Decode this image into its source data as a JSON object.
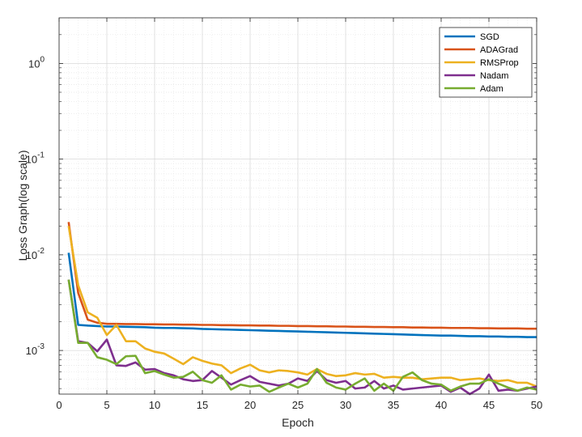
{
  "chart_data": {
    "type": "line",
    "title": "",
    "xlabel": "Epoch",
    "ylabel": "Loss Graph(log scale)",
    "xlim": [
      0,
      50
    ],
    "ylim": [
      0.00035,
      3
    ],
    "yscale": "log",
    "grid": true,
    "minor_grid": true,
    "legend_position": "top-right",
    "xticks": [
      "0",
      "5",
      "10",
      "15",
      "20",
      "25",
      "30",
      "35",
      "40",
      "45",
      "50"
    ],
    "yticks": [
      {
        "value": 1,
        "base": "10",
        "exp": "0"
      },
      {
        "value": 0.1,
        "base": "10",
        "exp": "-1"
      },
      {
        "value": 0.01,
        "base": "10",
        "exp": "-2"
      },
      {
        "value": 0.001,
        "base": "10",
        "exp": "-3"
      }
    ],
    "x": [
      1,
      2,
      3,
      4,
      5,
      6,
      7,
      8,
      9,
      10,
      11,
      12,
      13,
      14,
      15,
      16,
      17,
      18,
      19,
      20,
      21,
      22,
      23,
      24,
      25,
      26,
      27,
      28,
      29,
      30,
      31,
      32,
      33,
      34,
      35,
      36,
      37,
      38,
      39,
      40,
      41,
      42,
      43,
      44,
      45,
      46,
      47,
      48,
      49,
      50
    ],
    "series": [
      {
        "name": "SGD",
        "color": "#0072BD",
        "values": [
          0.0105,
          0.00185,
          0.00182,
          0.0018,
          0.00178,
          0.00178,
          0.00177,
          0.00176,
          0.00175,
          0.00173,
          0.00172,
          0.00172,
          0.00171,
          0.0017,
          0.00168,
          0.00167,
          0.00166,
          0.00165,
          0.00164,
          0.00163,
          0.00162,
          0.00161,
          0.0016,
          0.00159,
          0.00158,
          0.00157,
          0.00156,
          0.00155,
          0.00154,
          0.00153,
          0.00152,
          0.00151,
          0.0015,
          0.00149,
          0.00148,
          0.00147,
          0.00146,
          0.00145,
          0.00144,
          0.00143,
          0.00143,
          0.00142,
          0.00141,
          0.00141,
          0.0014,
          0.0014,
          0.00139,
          0.00139,
          0.00138,
          0.00138
        ]
      },
      {
        "name": "ADAGrad",
        "color": "#D95319",
        "values": [
          0.022,
          0.004,
          0.0021,
          0.00195,
          0.0019,
          0.0019,
          0.00189,
          0.00189,
          0.00188,
          0.00188,
          0.00187,
          0.00187,
          0.00186,
          0.00186,
          0.00185,
          0.00185,
          0.00184,
          0.00184,
          0.00183,
          0.00183,
          0.00182,
          0.00182,
          0.00181,
          0.00181,
          0.0018,
          0.0018,
          0.00179,
          0.00179,
          0.00178,
          0.00178,
          0.00177,
          0.00177,
          0.00176,
          0.00176,
          0.00175,
          0.00175,
          0.00174,
          0.00174,
          0.00173,
          0.00173,
          0.00172,
          0.00172,
          0.00172,
          0.00171,
          0.00171,
          0.0017,
          0.0017,
          0.0017,
          0.00169,
          0.00169
        ]
      },
      {
        "name": "RMSProp",
        "color": "#EDB120",
        "values": [
          0.02,
          0.0048,
          0.0025,
          0.0022,
          0.00145,
          0.00185,
          0.00125,
          0.00125,
          0.00105,
          0.00097,
          0.00093,
          0.00082,
          0.00072,
          0.00085,
          0.00078,
          0.00073,
          0.0007,
          0.00058,
          0.00065,
          0.00071,
          0.00062,
          0.00059,
          0.00062,
          0.00061,
          0.00059,
          0.00056,
          0.00064,
          0.00057,
          0.00054,
          0.00055,
          0.00058,
          0.00056,
          0.00057,
          0.00052,
          0.00053,
          0.00052,
          0.00052,
          0.0005,
          0.00051,
          0.00052,
          0.00052,
          0.00049,
          0.0005,
          0.00051,
          0.00049,
          0.00048,
          0.00049,
          0.00046,
          0.00046,
          0.00042
        ]
      },
      {
        "name": "Nadam",
        "color": "#7E2F8E",
        "values": [
          0.0055,
          0.00125,
          0.0012,
          0.00098,
          0.0013,
          0.0007,
          0.00069,
          0.00075,
          0.00063,
          0.00064,
          0.00058,
          0.00055,
          0.0005,
          0.00048,
          0.00049,
          0.00061,
          0.00052,
          0.00044,
          0.00049,
          0.00054,
          0.00047,
          0.00045,
          0.00043,
          0.00045,
          0.00051,
          0.00048,
          0.00061,
          0.00049,
          0.00046,
          0.00048,
          0.0004,
          0.00041,
          0.00048,
          0.0004,
          0.00043,
          0.00039,
          0.0004,
          0.00041,
          0.00042,
          0.00043,
          0.00037,
          0.00041,
          0.00035,
          0.0004,
          0.00056,
          0.00038,
          0.00039,
          0.00038,
          0.0004,
          0.00042
        ]
      },
      {
        "name": "Adam",
        "color": "#77AC30",
        "values": [
          0.0055,
          0.0012,
          0.0012,
          0.00085,
          0.0008,
          0.00072,
          0.00087,
          0.00088,
          0.00058,
          0.00061,
          0.00056,
          0.00052,
          0.00053,
          0.0006,
          0.00049,
          0.00046,
          0.00055,
          0.00039,
          0.00044,
          0.00042,
          0.00043,
          0.00037,
          0.00041,
          0.00045,
          0.00041,
          0.00045,
          0.00064,
          0.00046,
          0.00041,
          0.00039,
          0.00045,
          0.00051,
          0.00038,
          0.00045,
          0.00038,
          0.00053,
          0.00059,
          0.00049,
          0.00045,
          0.00044,
          0.00038,
          0.00042,
          0.00045,
          0.00045,
          0.0005,
          0.00045,
          0.00041,
          0.00038,
          0.00041,
          0.00039
        ]
      }
    ]
  }
}
